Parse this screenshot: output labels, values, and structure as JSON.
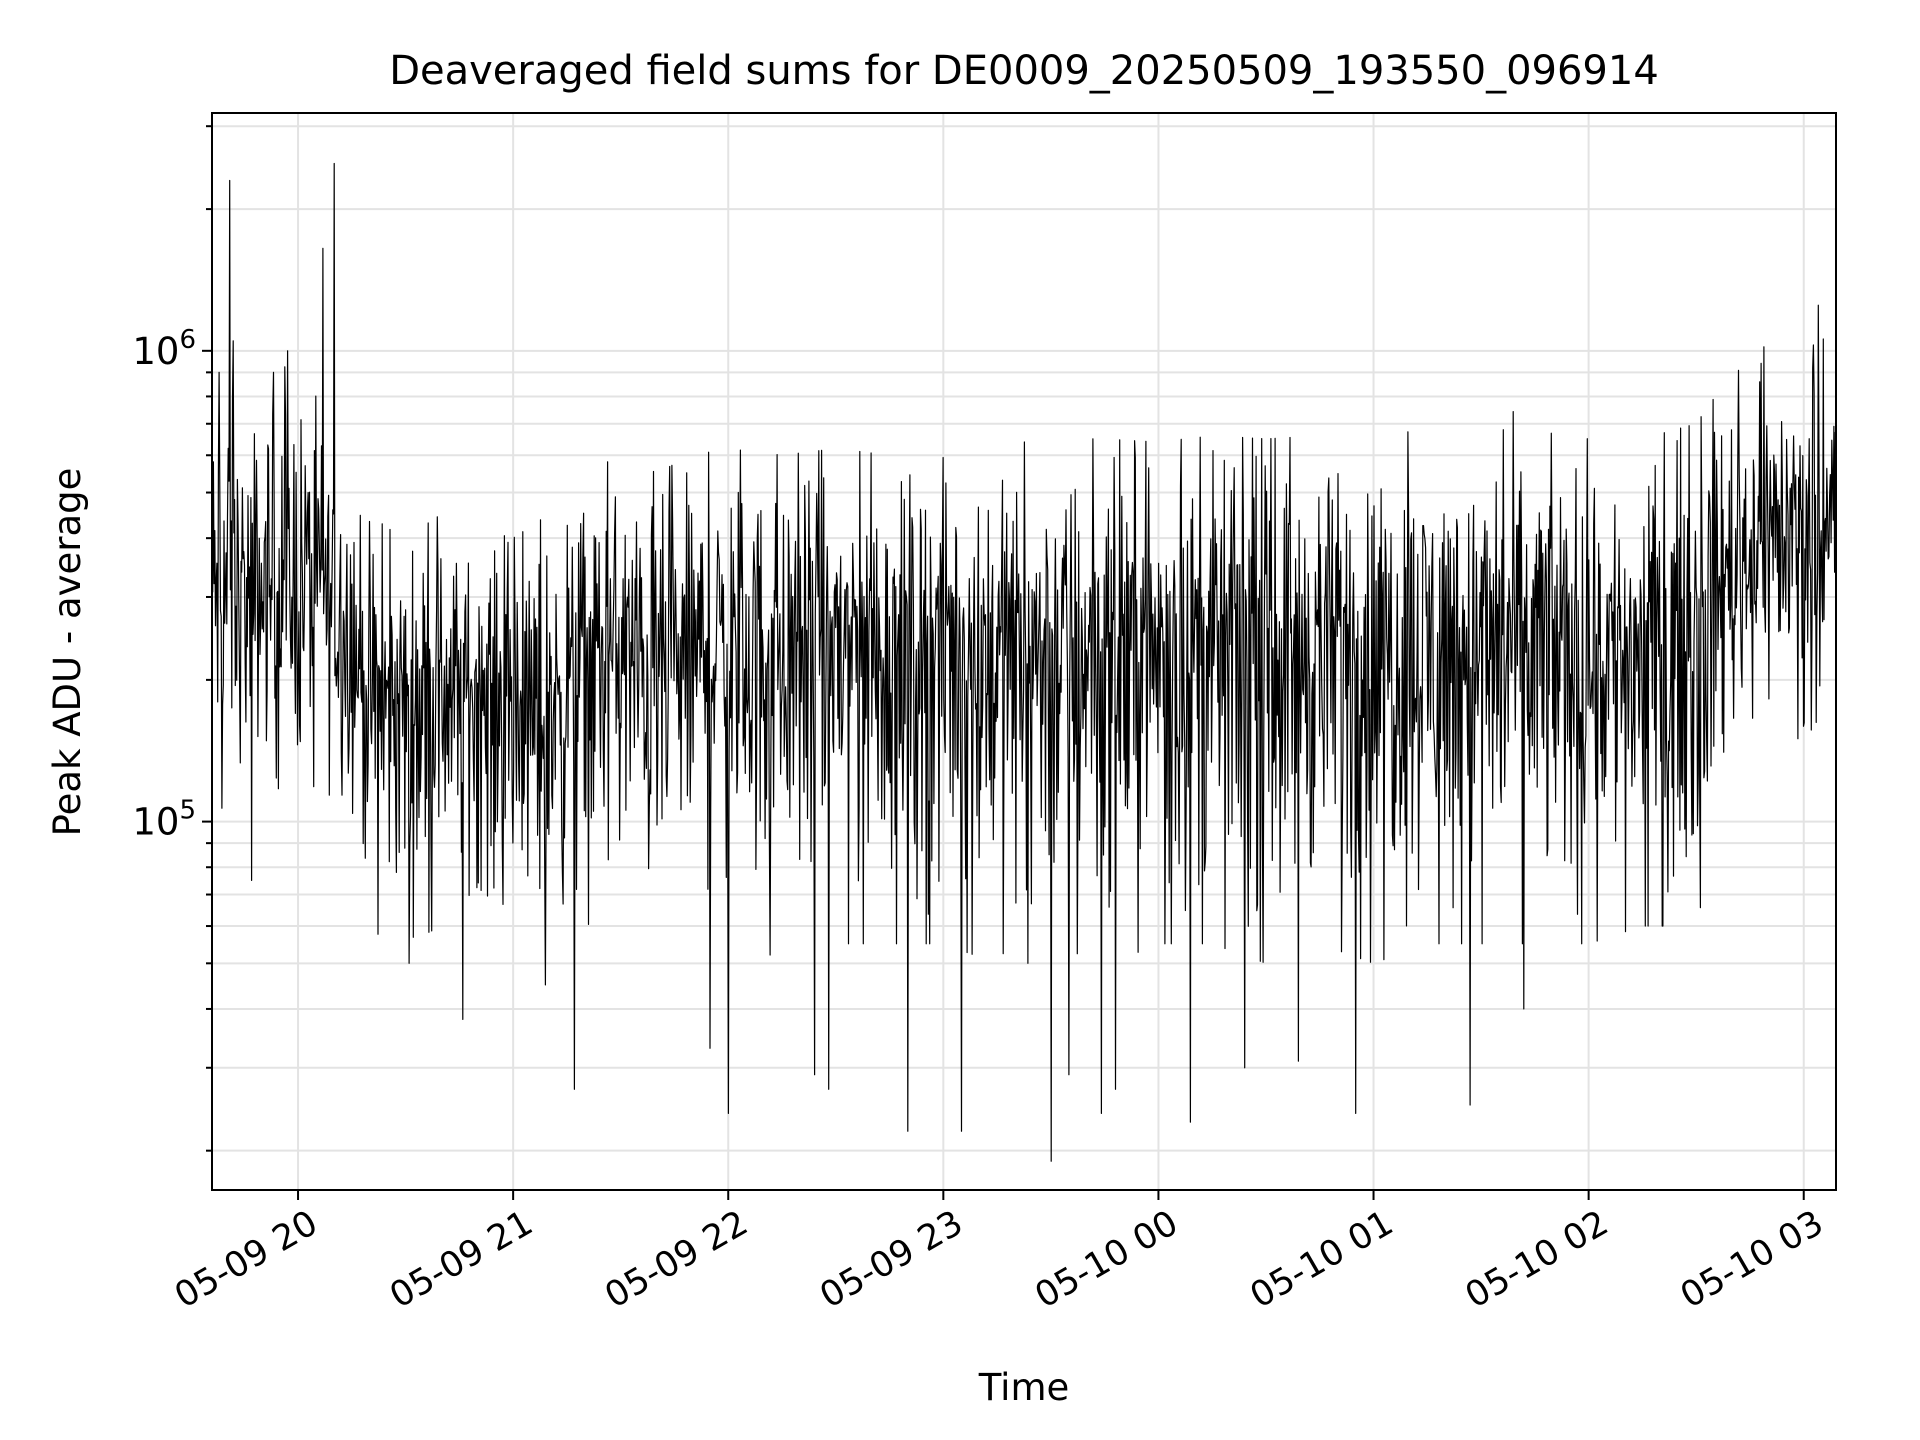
{
  "chart_data": {
    "type": "line",
    "title": "Deaveraged field sums for DE0009_20250509_193550_096914",
    "xlabel": "Time",
    "ylabel": "Peak ADU - average",
    "y_scale": "log",
    "ylim": [
      16500,
      3200000
    ],
    "xlim": [
      "2025-05-09 19:36",
      "2025-05-10 03:09"
    ],
    "x_ticks": [
      "2025-05-09 20:00",
      "2025-05-09 21:00",
      "2025-05-09 22:00",
      "2025-05-09 23:00",
      "2025-05-10 00:00",
      "2025-05-10 01:00",
      "2025-05-10 02:00",
      "2025-05-10 03:00"
    ],
    "x_tick_labels": [
      "05-09 20",
      "05-09 21",
      "05-09 22",
      "05-09 23",
      "05-10 00",
      "05-10 01",
      "05-10 02",
      "05-10 03"
    ],
    "y_major_ticks": [
      {
        "value": 100000,
        "base": "10",
        "exp": "5"
      },
      {
        "value": 1000000,
        "base": "10",
        "exp": "6"
      }
    ],
    "grid": true,
    "line_color": "#000000",
    "series": [
      {
        "x": [
          "2025-05-09 19:36",
          "2025-05-09 19:40",
          "2025-05-09 19:45",
          "2025-05-09 19:50",
          "2025-05-09 19:55",
          "2025-05-09 20:00",
          "2025-05-09 20:05",
          "2025-05-09 20:10",
          "2025-05-09 20:15",
          "2025-05-09 20:20",
          "2025-05-09 20:25",
          "2025-05-09 20:30",
          "2025-05-09 20:40",
          "2025-05-09 20:50",
          "2025-05-09 21:00",
          "2025-05-09 21:10",
          "2025-05-09 21:20",
          "2025-05-09 21:30",
          "2025-05-09 21:40",
          "2025-05-09 21:50",
          "2025-05-09 22:00",
          "2025-05-09 22:15",
          "2025-05-09 22:30",
          "2025-05-09 22:45",
          "2025-05-09 23:00",
          "2025-05-09 23:15",
          "2025-05-09 23:30",
          "2025-05-09 23:45",
          "2025-05-10 00:00",
          "2025-05-10 00:15",
          "2025-05-10 00:30",
          "2025-05-10 00:45",
          "2025-05-10 01:00",
          "2025-05-10 01:15",
          "2025-05-10 01:30",
          "2025-05-10 01:45",
          "2025-05-10 02:00",
          "2025-05-10 02:15",
          "2025-05-10 02:30",
          "2025-05-10 02:40",
          "2025-05-10 02:50",
          "2025-05-10 03:00",
          "2025-05-10 03:09"
        ],
        "y": [
          300000,
          320000,
          280000,
          300000,
          330000,
          320000,
          340000,
          290000,
          260000,
          180000,
          170000,
          190000,
          200000,
          195000,
          170000,
          175000,
          220000,
          230000,
          200000,
          230000,
          240000,
          235000,
          250000,
          245000,
          245000,
          240000,
          235000,
          245000,
          240000,
          240000,
          245000,
          240000,
          240000,
          245000,
          240000,
          245000,
          240000,
          230000,
          260000,
          360000,
          420000,
          430000,
          450000
        ],
        "spread_low": [
          100000,
          110000,
          120000,
          130000,
          100000,
          110000,
          120000,
          100000,
          90000,
          60000,
          55000,
          55000,
          60000,
          60000,
          50000,
          50000,
          60000,
          65000,
          55000,
          60000,
          60000,
          50000,
          55000,
          55000,
          55000,
          50000,
          50000,
          55000,
          55000,
          55000,
          50000,
          55000,
          50000,
          55000,
          55000,
          55000,
          55000,
          60000,
          60000,
          130000,
          150000,
          150000,
          180000
        ],
        "spread_high": [
          900000,
          1000000,
          800000,
          900000,
          900000,
          1000000,
          800000,
          700000,
          600000,
          450000,
          420000,
          400000,
          450000,
          420000,
          400000,
          450000,
          550000,
          600000,
          550000,
          600000,
          620000,
          600000,
          620000,
          600000,
          620000,
          630000,
          650000,
          650000,
          640000,
          660000,
          650000,
          660000,
          660000,
          680000,
          680000,
          680000,
          650000,
          650000,
          700000,
          900000,
          950000,
          1000000,
          1100000
        ],
        "spikes": [
          {
            "x": "2025-05-09 19:38",
            "y": 900000
          },
          {
            "x": "2025-05-09 19:41",
            "y": 2300000
          },
          {
            "x": "2025-05-09 19:42",
            "y": 1050000
          },
          {
            "x": "2025-05-09 19:47",
            "y": 75000
          },
          {
            "x": "2025-05-09 19:57",
            "y": 1000000
          },
          {
            "x": "2025-05-09 20:07",
            "y": 1650000
          },
          {
            "x": "2025-05-09 20:10",
            "y": 2500000
          },
          {
            "x": "2025-05-09 20:31",
            "y": 50000
          },
          {
            "x": "2025-05-09 20:46",
            "y": 38000
          },
          {
            "x": "2025-05-09 21:09",
            "y": 45000
          },
          {
            "x": "2025-05-09 21:17",
            "y": 27000
          },
          {
            "x": "2025-05-09 21:55",
            "y": 33000
          },
          {
            "x": "2025-05-09 22:00",
            "y": 24000
          },
          {
            "x": "2025-05-09 22:24",
            "y": 29000
          },
          {
            "x": "2025-05-09 22:28",
            "y": 27000
          },
          {
            "x": "2025-05-09 22:50",
            "y": 22000
          },
          {
            "x": "2025-05-09 23:05",
            "y": 22000
          },
          {
            "x": "2025-05-09 23:30",
            "y": 19000
          },
          {
            "x": "2025-05-09 23:35",
            "y": 29000
          },
          {
            "x": "2025-05-09 23:44",
            "y": 24000
          },
          {
            "x": "2025-05-09 23:48",
            "y": 27000
          },
          {
            "x": "2025-05-10 00:09",
            "y": 23000
          },
          {
            "x": "2025-05-10 00:24",
            "y": 30000
          },
          {
            "x": "2025-05-10 00:39",
            "y": 31000
          },
          {
            "x": "2025-05-10 00:55",
            "y": 24000
          },
          {
            "x": "2025-05-10 01:27",
            "y": 25000
          },
          {
            "x": "2025-05-10 01:42",
            "y": 40000
          },
          {
            "x": "2025-05-10 02:49",
            "y": 1020000
          },
          {
            "x": "2025-05-10 03:04",
            "y": 1250000
          }
        ]
      }
    ]
  }
}
